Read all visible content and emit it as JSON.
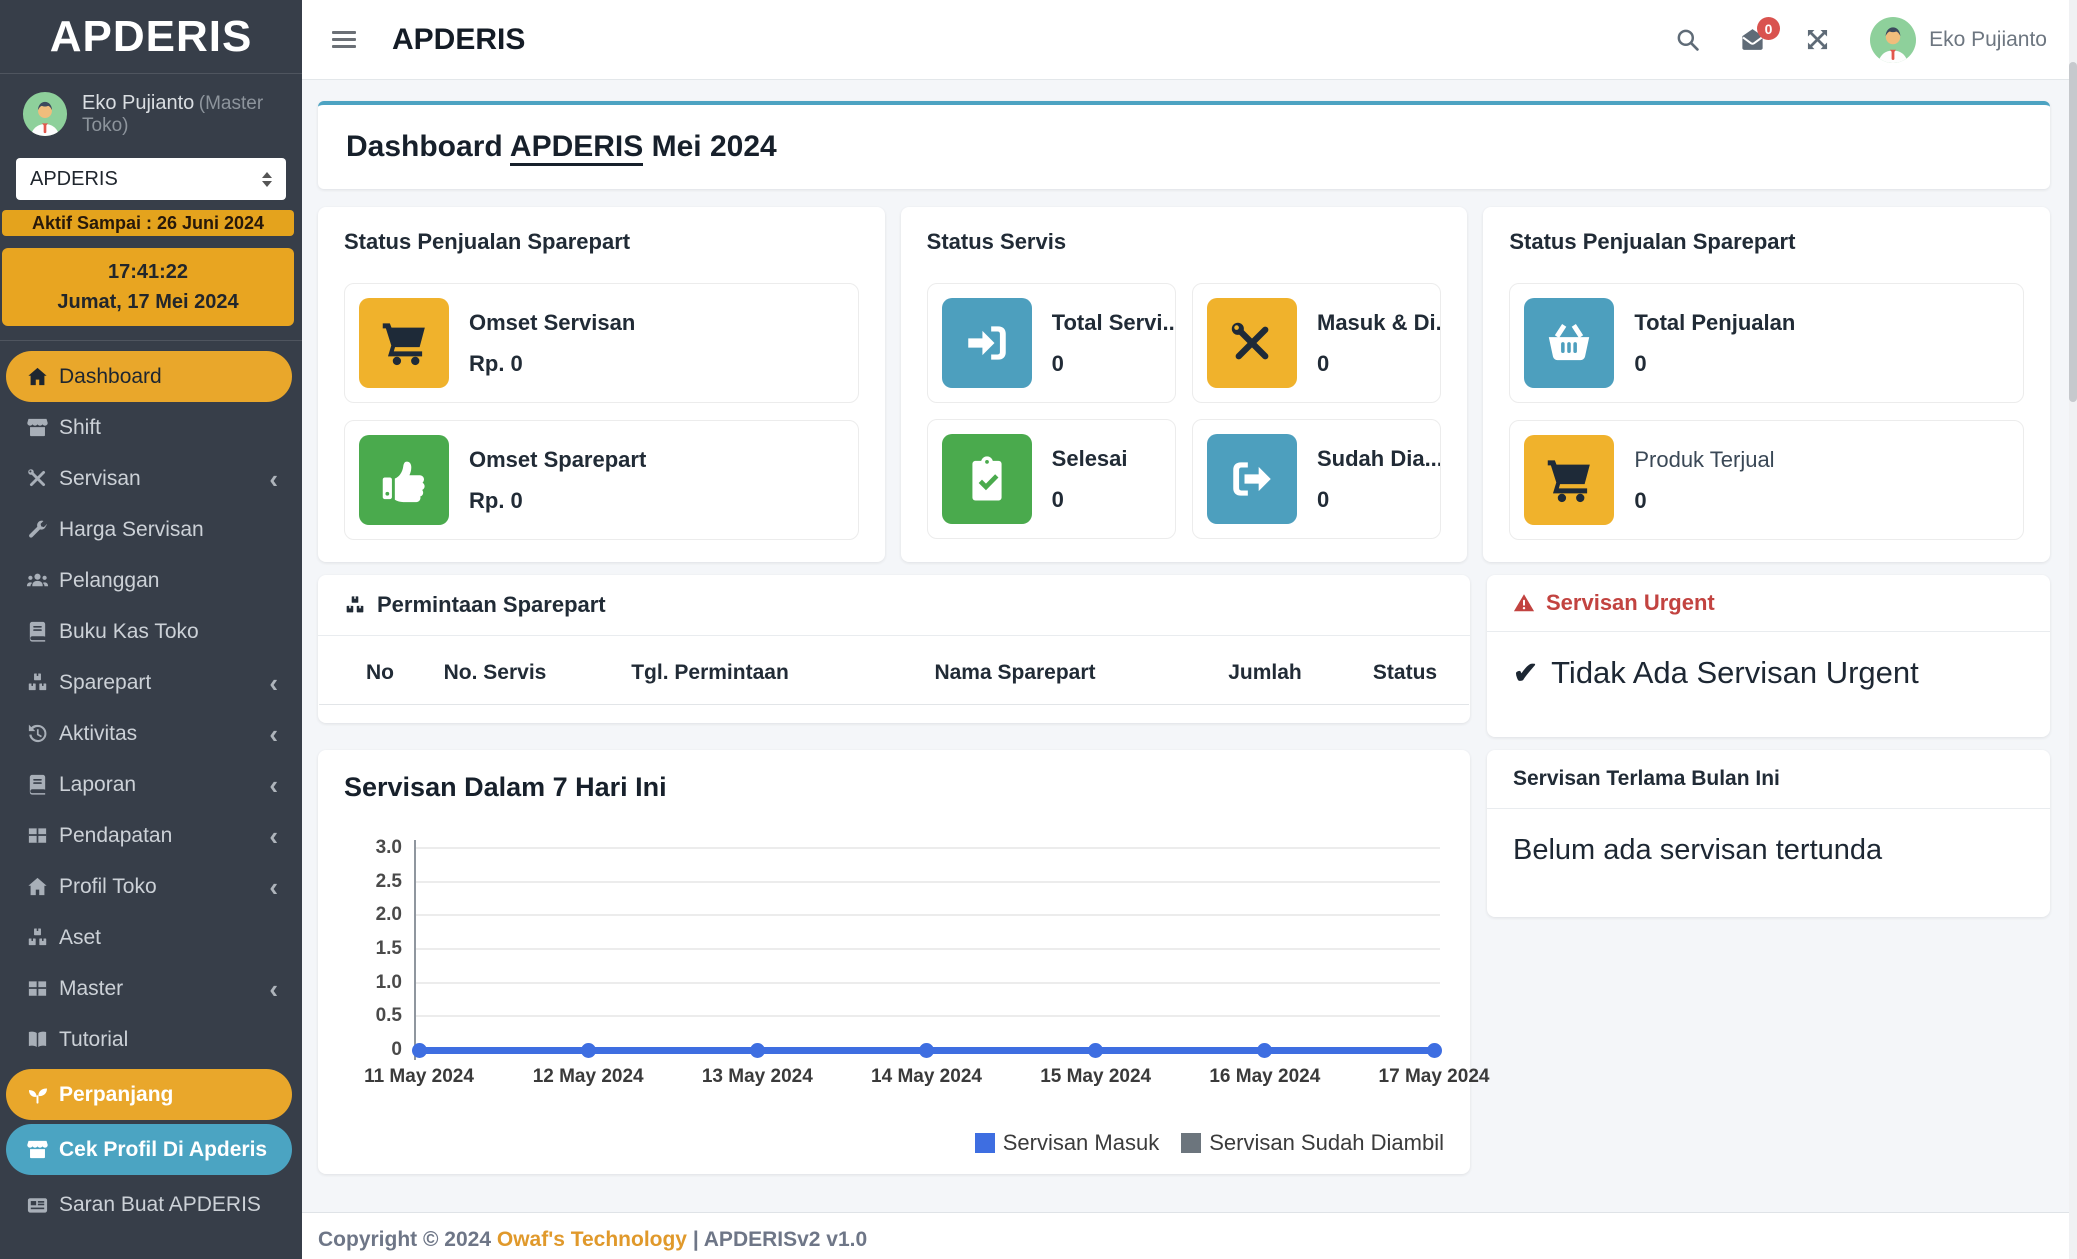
{
  "colors": {
    "accent_orange": "#e9a72b",
    "teal": "#4d9fbe",
    "green": "#4aaa4d",
    "yellow": "#f0b22c",
    "red": "#c24340",
    "chart_blue": "#3e6ee1",
    "legend_gray": "#6c757d",
    "sidebar_bg": "#373e49",
    "dark_icon": "#1e2a38"
  },
  "sidebar": {
    "logo": "APDERIS",
    "user": {
      "name": "Eko Pujianto",
      "role": "(Master Toko)"
    },
    "store_select": {
      "value": "APDERIS"
    },
    "active_until_badge": "Aktif Sampai : 26 Juni 2024",
    "clock": {
      "time": "17:41:22",
      "date": "Jumat, 17 Mei 2024"
    },
    "menu": [
      {
        "label": "Dashboard",
        "icon": "home-icon",
        "active": true
      },
      {
        "label": "Shift",
        "icon": "store-icon"
      },
      {
        "label": "Servisan",
        "icon": "screwdriver-wrench-icon",
        "chevron": true
      },
      {
        "label": "Harga Servisan",
        "icon": "wrench-icon"
      },
      {
        "label": "Pelanggan",
        "icon": "users-icon"
      },
      {
        "label": "Buku Kas Toko",
        "icon": "book-icon"
      },
      {
        "label": "Sparepart",
        "icon": "boxes-icon",
        "chevron": true
      },
      {
        "label": "Aktivitas",
        "icon": "history-icon",
        "chevron": true
      },
      {
        "label": "Laporan",
        "icon": "book-icon",
        "chevron": true
      },
      {
        "label": "Pendapatan",
        "icon": "table-icon",
        "chevron": true
      },
      {
        "label": "Profil Toko",
        "icon": "home-icon",
        "chevron": true
      },
      {
        "label": "Aset",
        "icon": "boxes-icon"
      },
      {
        "label": "Master",
        "icon": "table-icon",
        "chevron": true
      },
      {
        "label": "Tutorial",
        "icon": "open-book-icon"
      },
      {
        "label": "Perpanjang",
        "icon": "seedling-icon",
        "pill": "orange"
      },
      {
        "label": "Cek Profil Di Apderis",
        "icon": "store-icon",
        "pill": "teal"
      },
      {
        "label": "Saran Buat APDERIS",
        "icon": "newspaper-icon"
      }
    ]
  },
  "navbar": {
    "title": "APDERIS",
    "message_badge": "0",
    "user_name": "Eko Pujianto"
  },
  "page": {
    "title_prefix": "Dashboard ",
    "title_link": "APDERIS",
    "title_suffix": " Mei 2024"
  },
  "panels": [
    {
      "title": "Status Penjualan Sparepart",
      "layout": "stack",
      "cards": [
        {
          "icon": "cart-icon",
          "icon_bg": "#f0b22c",
          "icon_fg": "#1e2a38",
          "label": "Omset Servisan",
          "value": "Rp. 0",
          "bold": true
        },
        {
          "icon": "thumbs-up-icon",
          "icon_bg": "#4aaa4d",
          "icon_fg": "#ffffff",
          "label": "Omset Sparepart",
          "value": "Rp. 0",
          "bold": true
        }
      ]
    },
    {
      "title": "Status Servis",
      "layout": "grid",
      "cards": [
        {
          "icon": "sign-in-icon",
          "icon_bg": "#4d9fbe",
          "icon_fg": "#ffffff",
          "label": "Total Servi...",
          "value": "0",
          "bold": true
        },
        {
          "icon": "screwdriver-wrench-icon",
          "icon_bg": "#f0b22c",
          "icon_fg": "#1e2a38",
          "label": "Masuk & Di...",
          "value": "0",
          "bold": true
        },
        {
          "icon": "clipboard-check-icon",
          "icon_bg": "#4aaa4d",
          "icon_fg": "#ffffff",
          "label": "Selesai",
          "value": "0",
          "bold": true
        },
        {
          "icon": "sign-out-icon",
          "icon_bg": "#4d9fbe",
          "icon_fg": "#ffffff",
          "label": "Sudah Dia...",
          "value": "0",
          "bold": true
        }
      ]
    },
    {
      "title": "Status Penjualan Sparepart",
      "layout": "stack",
      "cards": [
        {
          "icon": "basket-icon",
          "icon_bg": "#4d9fbe",
          "icon_fg": "#ffffff",
          "label": "Total Penjualan",
          "value": "0",
          "bold": true
        },
        {
          "icon": "cart-icon",
          "icon_bg": "#f0b22c",
          "icon_fg": "#1e2a38",
          "label": "Produk Terjual",
          "value": "0",
          "bold": false
        }
      ]
    }
  ],
  "requests": {
    "title": "Permintaan Sparepart",
    "columns": [
      "No",
      "No. Servis",
      "Tgl. Permintaan",
      "Nama Sparepart",
      "Jumlah",
      "Status"
    ],
    "rows": []
  },
  "urgent": {
    "title": "Servisan Urgent",
    "check": "✔",
    "message": "Tidak Ada Servisan Urgent"
  },
  "terlama": {
    "title": "Servisan Terlama Bulan Ini",
    "message": "Belum ada servisan tertunda"
  },
  "chart_data": {
    "type": "line",
    "title": "Servisan Dalam 7 Hari Ini",
    "x": [
      "11 May 2024",
      "12 May 2024",
      "13 May 2024",
      "14 May 2024",
      "15 May 2024",
      "16 May 2024",
      "17 May 2024"
    ],
    "series": [
      {
        "name": "Servisan Masuk",
        "color": "#3e6ee1",
        "values": [
          0,
          0,
          0,
          0,
          0,
          0,
          0
        ]
      },
      {
        "name": "Servisan Sudah Diambil",
        "color": "#6c757d",
        "values": [
          0,
          0,
          0,
          0,
          0,
          0,
          0
        ]
      }
    ],
    "ylim": [
      0,
      3
    ],
    "yticks": [
      "3.0",
      "2.5",
      "2.0",
      "1.5",
      "1.0",
      "0.5",
      "0"
    ],
    "grid": true,
    "legend_position": "bottom-right"
  },
  "footer": {
    "copyright_prefix": "Copyright © 2024 ",
    "company": "Owaf's Technology",
    "suffix": " | APDERISv2 v1.0"
  }
}
